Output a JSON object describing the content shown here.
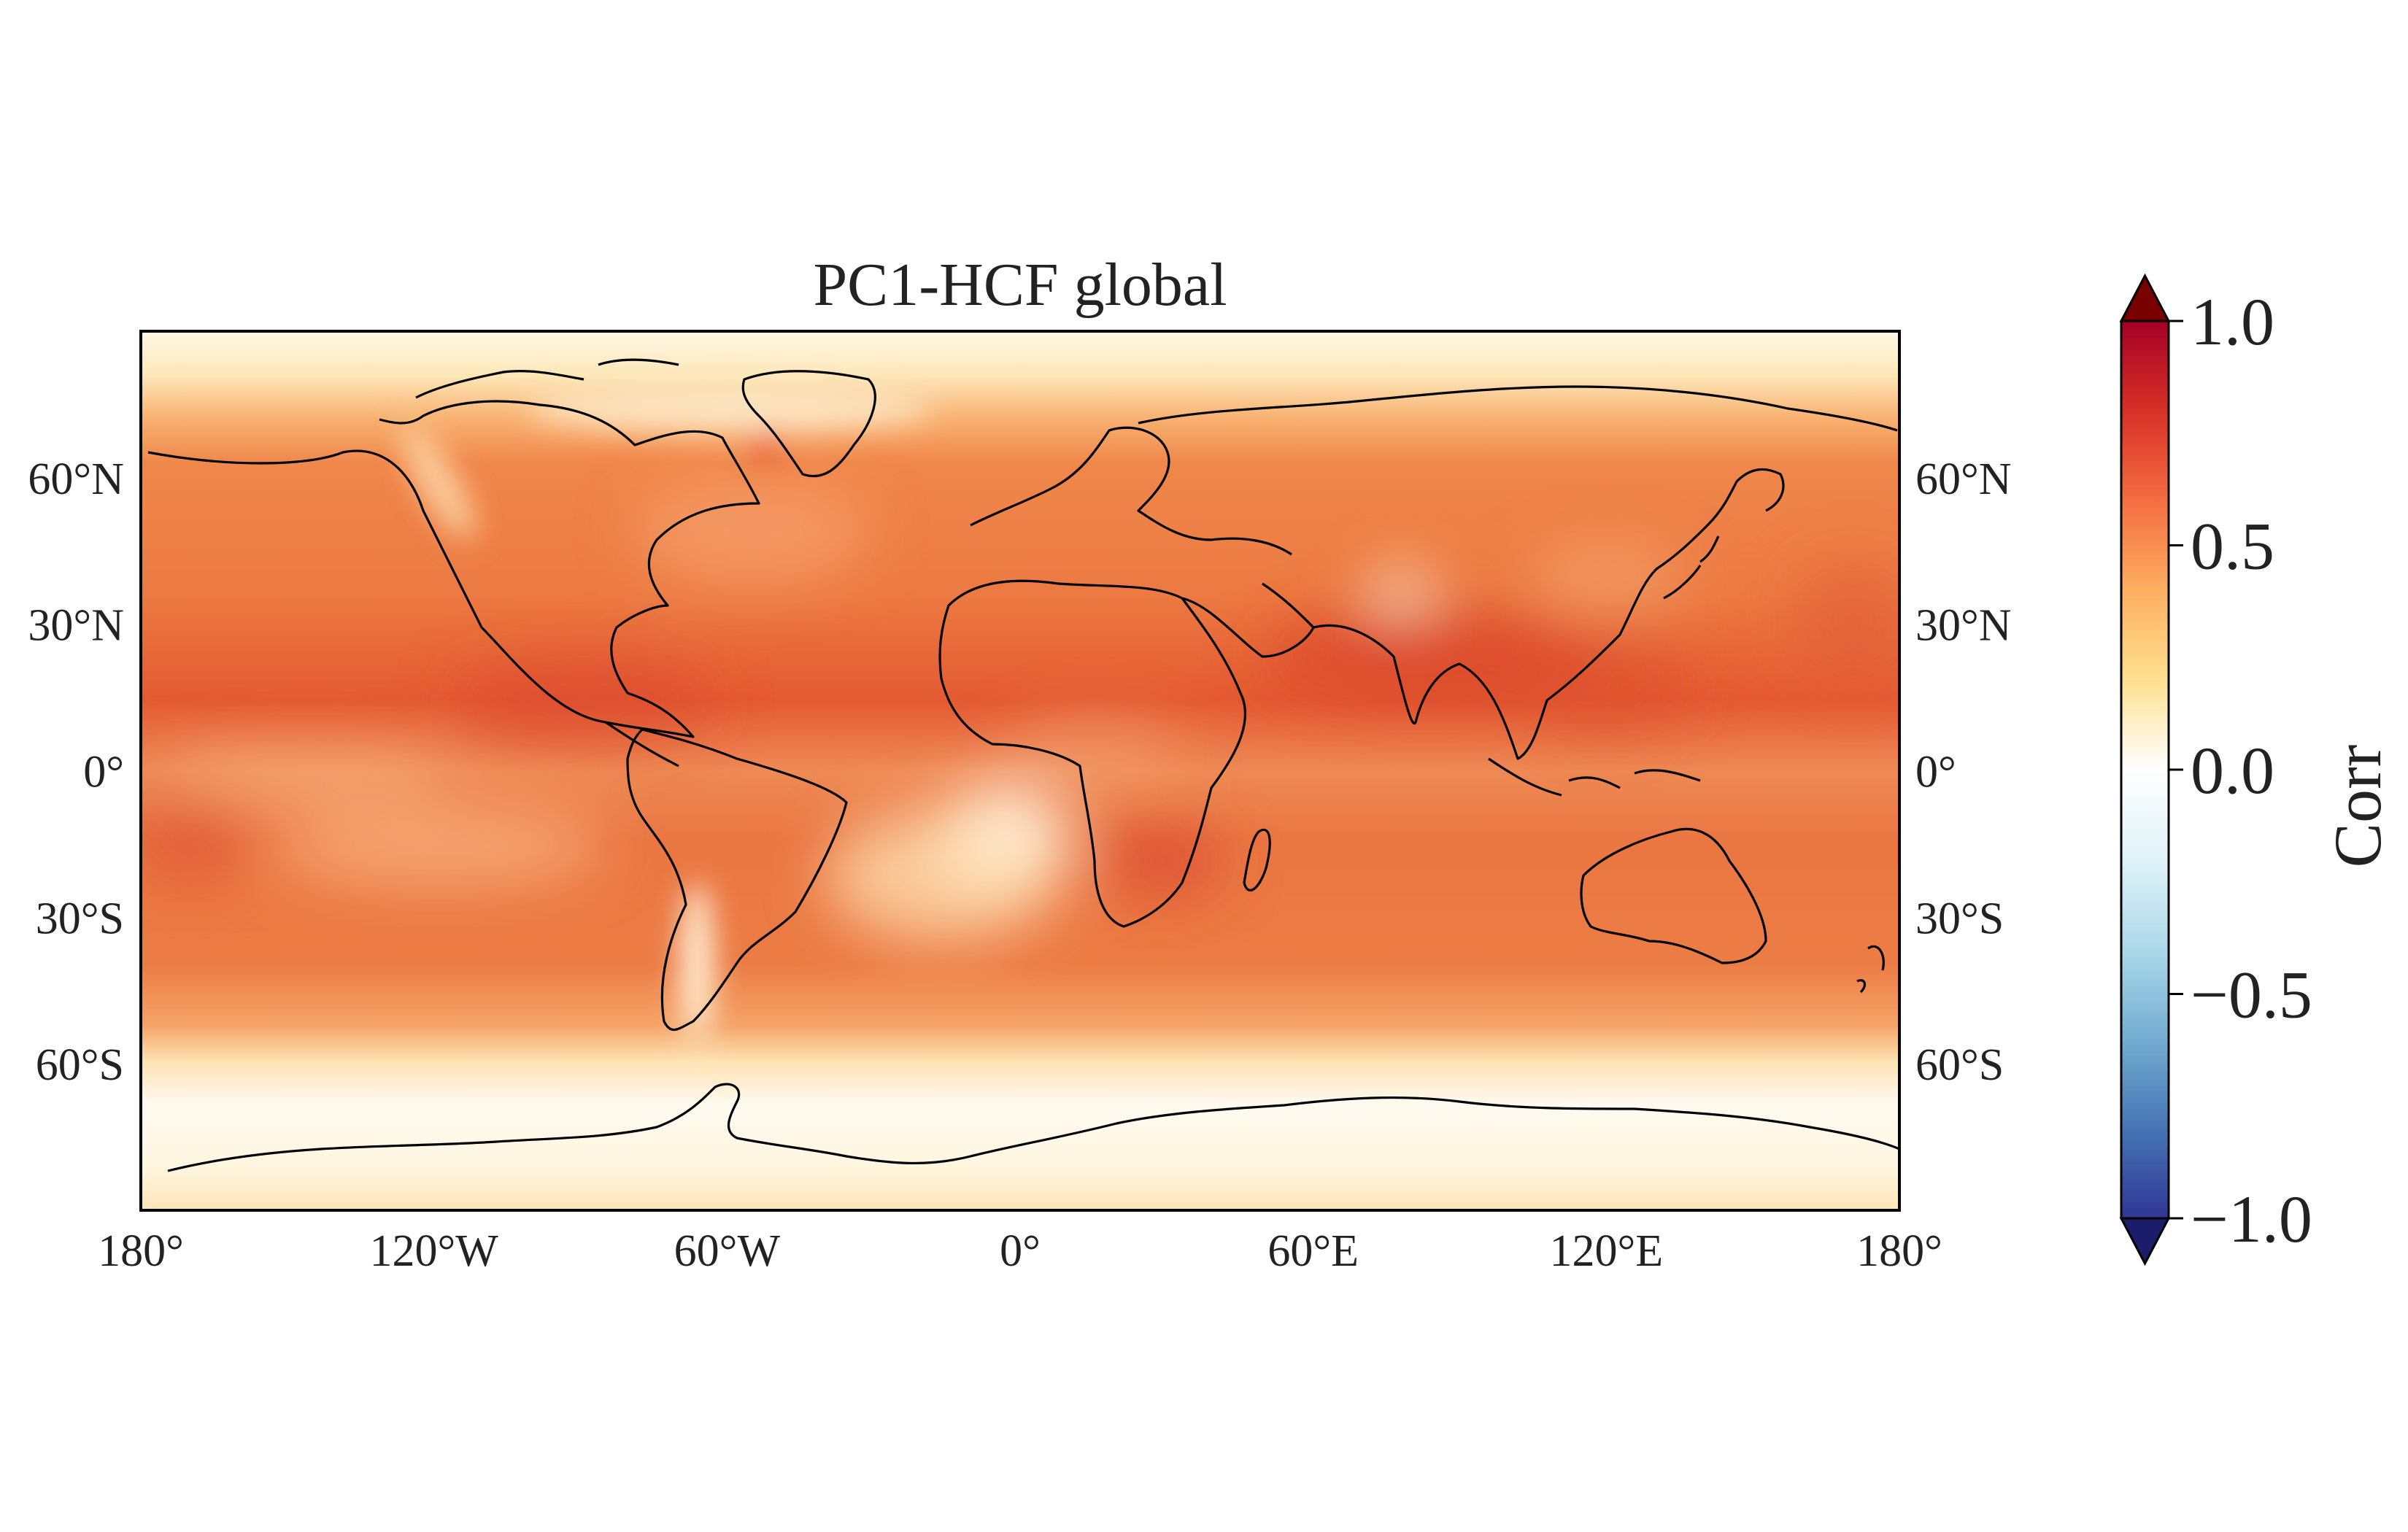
{
  "title": "PC1-HCF global",
  "map": {
    "projection": "PlateCarree",
    "lon_range": [
      -180,
      180
    ],
    "lat_range": [
      -90,
      90
    ],
    "lat_ticks": [
      {
        "value": 60,
        "label": "60°N"
      },
      {
        "value": 30,
        "label": "30°N"
      },
      {
        "value": 0,
        "label": "0°"
      },
      {
        "value": -30,
        "label": "30°S"
      },
      {
        "value": -60,
        "label": "60°S"
      }
    ],
    "lon_ticks": [
      {
        "value": -180,
        "label": "180°"
      },
      {
        "value": -120,
        "label": "120°W"
      },
      {
        "value": -60,
        "label": "60°W"
      },
      {
        "value": 0,
        "label": "0°"
      },
      {
        "value": 60,
        "label": "60°E"
      },
      {
        "value": 120,
        "label": "120°E"
      },
      {
        "value": 180,
        "label": "180°"
      }
    ],
    "coastlines": true
  },
  "colorbar": {
    "label": "Corr",
    "range": [
      -1.0,
      1.0
    ],
    "extend": "both",
    "colormap": "RdYlBu_r",
    "ticks": [
      {
        "value": 1.0,
        "label": "1.0"
      },
      {
        "value": 0.5,
        "label": "0.5"
      },
      {
        "value": 0.0,
        "label": "0.0"
      },
      {
        "value": -0.5,
        "label": "−0.5"
      },
      {
        "value": -1.0,
        "label": "−1.0"
      }
    ],
    "colors": [
      "#313695",
      "#4575b4",
      "#74add1",
      "#abd9e9",
      "#e0f3f8",
      "#ffffff",
      "#fee090",
      "#fdae61",
      "#f46d43",
      "#d73027",
      "#a50026"
    ]
  }
}
